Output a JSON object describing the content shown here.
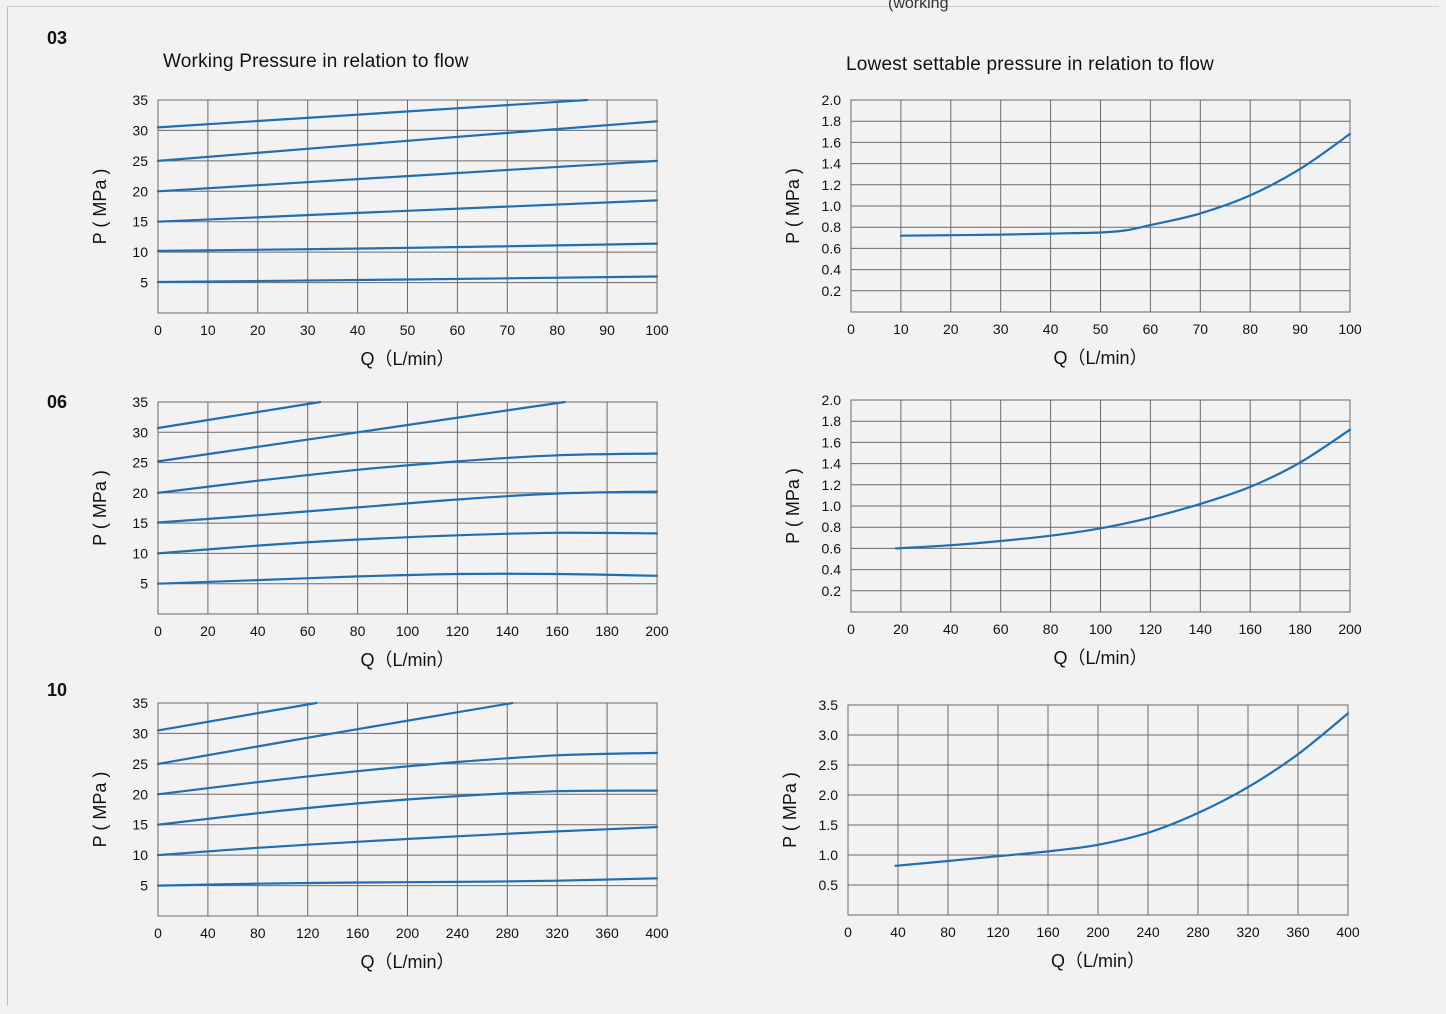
{
  "top_note": "(working",
  "sections": [
    {
      "label": "03"
    },
    {
      "label": "06"
    },
    {
      "label": "10"
    }
  ],
  "column_titles": {
    "left": "Working Pressure in relation to flow",
    "right": "Lowest  settable pressure in relation to flow"
  },
  "colors": {
    "line": "#1f6fb2",
    "grid": "#6a6a6a",
    "plot_bg": "#f2f2f2"
  },
  "chart_data": [
    {
      "id": "c03L",
      "type": "line",
      "title": "Working Pressure in relation to flow",
      "xlabel": "Q（L/min）",
      "ylabel": "P ( MPa )",
      "xlim": [
        0,
        100
      ],
      "ylim": [
        0,
        35
      ],
      "xticks": [
        0,
        10,
        20,
        30,
        40,
        50,
        60,
        70,
        80,
        90,
        100
      ],
      "xtick_labels": [
        "0",
        "10",
        "20",
        "30",
        "40",
        "50",
        "60",
        "70",
        "80",
        "90",
        "100"
      ],
      "yticks": [
        5,
        10,
        15,
        20,
        25,
        30,
        35
      ],
      "ytick_labels": [
        "5",
        "10",
        "15",
        "20",
        "25",
        "30",
        "35"
      ],
      "grid": true,
      "series": [
        {
          "points": [
            [
              0,
              30.5
            ],
            [
              86,
              35
            ]
          ]
        },
        {
          "points": [
            [
              0,
              25
            ],
            [
              50,
              28.3
            ],
            [
              100,
              31.5
            ]
          ]
        },
        {
          "points": [
            [
              0,
              20
            ],
            [
              50,
              22.5
            ],
            [
              100,
              25
            ]
          ]
        },
        {
          "points": [
            [
              0,
              15
            ],
            [
              50,
              16.8
            ],
            [
              100,
              18.5
            ]
          ]
        },
        {
          "points": [
            [
              0,
              10.2
            ],
            [
              50,
              10.7
            ],
            [
              100,
              11.4
            ]
          ]
        },
        {
          "points": [
            [
              0,
              5.1
            ],
            [
              50,
              5.5
            ],
            [
              100,
              6
            ]
          ]
        }
      ]
    },
    {
      "id": "c03R",
      "type": "line",
      "title": "Lowest  settable pressure in relation to flow",
      "xlabel": "Q（L/min）",
      "ylabel": "P ( MPa )",
      "xlim": [
        0,
        100
      ],
      "ylim": [
        0,
        2.0
      ],
      "xticks": [
        0,
        10,
        20,
        30,
        40,
        50,
        60,
        70,
        80,
        90,
        100
      ],
      "xtick_labels": [
        "0",
        "10",
        "20",
        "30",
        "40",
        "50",
        "60",
        "70",
        "80",
        "90",
        "100"
      ],
      "yticks": [
        0.2,
        0.4,
        0.6,
        0.8,
        1.0,
        1.2,
        1.4,
        1.6,
        1.8,
        2.0
      ],
      "ytick_labels": [
        "0.2",
        "0.4",
        "0.6",
        "0.8",
        "1.0",
        "1.2",
        "1.4",
        "1.6",
        "1.8",
        "2.0"
      ],
      "grid": true,
      "series": [
        {
          "points": [
            [
              10,
              0.72
            ],
            [
              20,
              0.725
            ],
            [
              30,
              0.73
            ],
            [
              40,
              0.74
            ],
            [
              50,
              0.75
            ],
            [
              55,
              0.77
            ],
            [
              60,
              0.82
            ],
            [
              70,
              0.93
            ],
            [
              80,
              1.1
            ],
            [
              90,
              1.35
            ],
            [
              100,
              1.68
            ]
          ]
        }
      ]
    },
    {
      "id": "c06L",
      "type": "line",
      "title": "",
      "xlabel": "Q（L/min）",
      "ylabel": "P ( MPa )",
      "xlim": [
        0,
        200
      ],
      "ylim": [
        0,
        35
      ],
      "xticks": [
        0,
        20,
        40,
        60,
        80,
        100,
        120,
        140,
        160,
        180,
        200
      ],
      "xtick_labels": [
        "0",
        "20",
        "40",
        "60",
        "80",
        "100",
        "120",
        "140",
        "160",
        "180",
        "200"
      ],
      "yticks": [
        5,
        10,
        15,
        20,
        25,
        30,
        35
      ],
      "ytick_labels": [
        "5",
        "10",
        "15",
        "20",
        "25",
        "30",
        "35"
      ],
      "grid": true,
      "series": [
        {
          "points": [
            [
              0,
              30.7
            ],
            [
              65,
              35
            ]
          ]
        },
        {
          "points": [
            [
              0,
              25.2
            ],
            [
              80,
              30
            ],
            [
              163,
              35
            ]
          ]
        },
        {
          "points": [
            [
              0,
              20
            ],
            [
              40,
              22
            ],
            [
              80,
              23.8
            ],
            [
              120,
              25.2
            ],
            [
              160,
              26.2
            ],
            [
              200,
              26.5
            ]
          ]
        },
        {
          "points": [
            [
              0,
              15.1
            ],
            [
              40,
              16.3
            ],
            [
              80,
              17.6
            ],
            [
              120,
              18.9
            ],
            [
              160,
              19.9
            ],
            [
              200,
              20.2
            ]
          ]
        },
        {
          "points": [
            [
              0,
              10
            ],
            [
              40,
              11.3
            ],
            [
              80,
              12.3
            ],
            [
              120,
              13
            ],
            [
              160,
              13.4
            ],
            [
              200,
              13.3
            ]
          ]
        },
        {
          "points": [
            [
              0,
              5
            ],
            [
              40,
              5.6
            ],
            [
              80,
              6.2
            ],
            [
              120,
              6.6
            ],
            [
              160,
              6.6
            ],
            [
              200,
              6.3
            ]
          ]
        }
      ]
    },
    {
      "id": "c06R",
      "type": "line",
      "title": "",
      "xlabel": "Q（L/min）",
      "ylabel": "P ( MPa )",
      "xlim": [
        0,
        200
      ],
      "ylim": [
        0,
        2.0
      ],
      "xticks": [
        0,
        20,
        40,
        60,
        80,
        100,
        120,
        140,
        160,
        180,
        200
      ],
      "xtick_labels": [
        "0",
        "20",
        "40",
        "60",
        "80",
        "100",
        "120",
        "140",
        "160",
        "180",
        "200"
      ],
      "yticks": [
        0.2,
        0.4,
        0.6,
        0.8,
        1.0,
        1.2,
        1.4,
        1.6,
        1.8,
        2.0
      ],
      "ytick_labels": [
        "0.2",
        "0.4",
        "0.6",
        "0.8",
        "1.0",
        "1.2",
        "1.4",
        "1.6",
        "1.8",
        "2.0"
      ],
      "grid": true,
      "series": [
        {
          "points": [
            [
              18,
              0.6
            ],
            [
              40,
              0.63
            ],
            [
              60,
              0.67
            ],
            [
              80,
              0.72
            ],
            [
              100,
              0.79
            ],
            [
              120,
              0.89
            ],
            [
              140,
              1.02
            ],
            [
              160,
              1.18
            ],
            [
              180,
              1.41
            ],
            [
              200,
              1.72
            ]
          ]
        }
      ]
    },
    {
      "id": "c10L",
      "type": "line",
      "title": "",
      "xlabel": "Q（L/min）",
      "ylabel": "P ( MPa )",
      "xlim": [
        0,
        400
      ],
      "ylim": [
        0,
        35
      ],
      "xticks": [
        0,
        40,
        80,
        120,
        160,
        200,
        240,
        280,
        320,
        360,
        400
      ],
      "xtick_labels": [
        "0",
        "40",
        "80",
        "120",
        "160",
        "200",
        "240",
        "280",
        "320",
        "360",
        "400"
      ],
      "yticks": [
        5,
        10,
        15,
        20,
        25,
        30,
        35
      ],
      "ytick_labels": [
        "5",
        "10",
        "15",
        "20",
        "25",
        "30",
        "35"
      ],
      "grid": true,
      "series": [
        {
          "points": [
            [
              0,
              30.5
            ],
            [
              127,
              35
            ]
          ]
        },
        {
          "points": [
            [
              0,
              25
            ],
            [
              140,
              30
            ],
            [
              284,
              35
            ]
          ]
        },
        {
          "points": [
            [
              0,
              20
            ],
            [
              80,
              22
            ],
            [
              160,
              23.8
            ],
            [
              240,
              25.3
            ],
            [
              320,
              26.4
            ],
            [
              400,
              26.8
            ]
          ]
        },
        {
          "points": [
            [
              0,
              15
            ],
            [
              80,
              16.9
            ],
            [
              160,
              18.5
            ],
            [
              240,
              19.7
            ],
            [
              320,
              20.5
            ],
            [
              400,
              20.6
            ]
          ]
        },
        {
          "points": [
            [
              0,
              10
            ],
            [
              80,
              11.2
            ],
            [
              160,
              12.2
            ],
            [
              240,
              13.1
            ],
            [
              320,
              13.9
            ],
            [
              400,
              14.6
            ]
          ]
        },
        {
          "points": [
            [
              0,
              5
            ],
            [
              80,
              5.3
            ],
            [
              160,
              5.5
            ],
            [
              240,
              5.6
            ],
            [
              320,
              5.8
            ],
            [
              400,
              6.2
            ]
          ]
        }
      ]
    },
    {
      "id": "c10R",
      "type": "line",
      "title": "",
      "xlabel": "Q（L/min）",
      "ylabel": "P ( MPa )",
      "xlim": [
        0,
        400
      ],
      "ylim": [
        0,
        3.5
      ],
      "xticks": [
        0,
        40,
        80,
        120,
        160,
        200,
        240,
        280,
        320,
        360,
        400
      ],
      "xtick_labels": [
        "0",
        "40",
        "80",
        "120",
        "160",
        "200",
        "240",
        "280",
        "320",
        "360",
        "400"
      ],
      "yticks": [
        0.5,
        1.0,
        1.5,
        2.0,
        2.5,
        3.0,
        3.5
      ],
      "ytick_labels": [
        "0.5",
        "1.0",
        "1.5",
        "2.0",
        "2.5",
        "3.0",
        "3.5"
      ],
      "grid": true,
      "series": [
        {
          "points": [
            [
              38,
              0.82
            ],
            [
              80,
              0.9
            ],
            [
              120,
              0.98
            ],
            [
              160,
              1.06
            ],
            [
              200,
              1.17
            ],
            [
              240,
              1.37
            ],
            [
              280,
              1.7
            ],
            [
              320,
              2.13
            ],
            [
              360,
              2.68
            ],
            [
              400,
              3.36
            ]
          ]
        }
      ]
    }
  ]
}
